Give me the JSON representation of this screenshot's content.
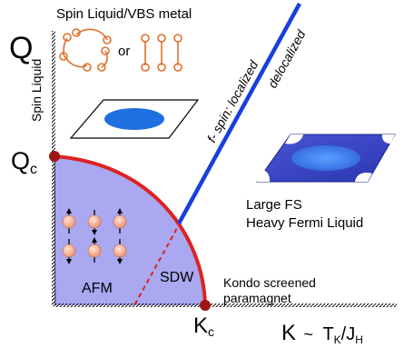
{
  "title": "Spin Liquid/VBS metal",
  "or_text": "or",
  "y_axis": {
    "symbol": "Q",
    "label": "Spin Liquid",
    "critical": {
      "main": "Q",
      "sub": "c"
    }
  },
  "x_axis": {
    "symbol": "K",
    "tilde": "~",
    "ratio": {
      "main1": "T",
      "sub1": "K",
      "slash": "/J",
      "sub2": "H"
    },
    "critical": {
      "main": "K",
      "sub": "c"
    },
    "end_note_line1": "Kondo screened",
    "end_note_line2": "paramagnet"
  },
  "phase_line": {
    "localized_label": "f- spin:  localized",
    "delocalized_label": "delocalized"
  },
  "regions": {
    "afm": "AFM",
    "sdw": "SDW",
    "heavy_fl_line1": "Large FS",
    "heavy_fl_line2": "Heavy Fermi Liquid"
  },
  "colors": {
    "afm_fill": "#a9a8f0",
    "boundary": "#dd2222",
    "critical_point": "#a01515",
    "phase_line": "#1a3fe0",
    "localized_text": "#1a3fe0",
    "delocalized_text": "#1f8a2a",
    "vbs_bonds": "#e0702a",
    "spin_fill": "#f4a98a",
    "fermi_surface": "#1e6fe0",
    "large_fs_plane": "#3343c8"
  }
}
